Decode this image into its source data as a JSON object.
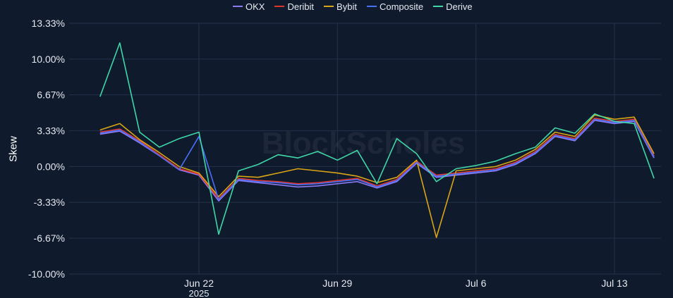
{
  "chart_data": {
    "type": "line",
    "title": "",
    "ylabel": "Skew",
    "xlabel": "",
    "y_ticks": [
      "13.33%",
      "10.00%",
      "6.67%",
      "3.33%",
      "0.00%",
      "-3.33%",
      "-6.67%",
      "-10.00%"
    ],
    "y_tick_values": [
      13.33,
      10.0,
      6.67,
      3.33,
      0.0,
      -3.33,
      -6.67,
      -10.0
    ],
    "ylim": [
      -10.0,
      13.33
    ],
    "x_ticks": [
      "Jun 22",
      "Jun 29",
      "Jul 6",
      "Jul 13"
    ],
    "x_tick_sublabel": "2025",
    "x_range": [
      "2025-06-17",
      "2025-07-15"
    ],
    "watermark": "BlockScholes",
    "legend_position": "top-center",
    "grid": true,
    "colors": {
      "background": "#0f1a2d",
      "grid": "#24324a",
      "text": "#e6e9ef"
    },
    "series": [
      {
        "name": "OKX",
        "color": "#8b7cf6",
        "x": [
          "2025-06-17",
          "2025-06-18",
          "2025-06-19",
          "2025-06-20",
          "2025-06-21",
          "2025-06-22",
          "2025-06-23",
          "2025-06-24",
          "2025-06-25",
          "2025-06-26",
          "2025-06-27",
          "2025-06-28",
          "2025-06-29",
          "2025-06-30",
          "2025-07-01",
          "2025-07-02",
          "2025-07-03",
          "2025-07-04",
          "2025-07-05",
          "2025-07-06",
          "2025-07-07",
          "2025-07-08",
          "2025-07-09",
          "2025-07-10",
          "2025-07-11",
          "2025-07-12",
          "2025-07-13",
          "2025-07-14",
          "2025-07-15"
        ],
        "values": [
          3.0,
          3.3,
          2.2,
          1.0,
          -0.3,
          -0.8,
          -3.2,
          -1.3,
          -1.5,
          -1.7,
          -1.9,
          -1.8,
          -1.6,
          -1.4,
          -2.0,
          -1.4,
          0.3,
          -1.0,
          -0.8,
          -0.6,
          -0.4,
          0.2,
          1.2,
          2.8,
          2.4,
          4.3,
          4.0,
          4.2,
          0.8
        ]
      },
      {
        "name": "Deribit",
        "color": "#e0352b",
        "x": [
          "2025-06-17",
          "2025-06-18",
          "2025-06-19",
          "2025-06-20",
          "2025-06-21",
          "2025-06-22",
          "2025-06-23",
          "2025-06-24",
          "2025-06-25",
          "2025-06-26",
          "2025-06-27",
          "2025-06-28",
          "2025-06-29",
          "2025-06-30",
          "2025-07-01",
          "2025-07-02",
          "2025-07-03",
          "2025-07-04",
          "2025-07-05",
          "2025-07-06",
          "2025-07-07",
          "2025-07-08",
          "2025-07-09",
          "2025-07-10",
          "2025-07-11",
          "2025-07-12",
          "2025-07-13",
          "2025-07-14",
          "2025-07-15"
        ],
        "values": [
          3.2,
          3.5,
          2.4,
          1.1,
          -0.2,
          -0.7,
          -3.0,
          -1.1,
          -1.3,
          -1.4,
          -1.6,
          -1.5,
          -1.3,
          -1.1,
          -1.8,
          -1.2,
          0.5,
          -0.8,
          -0.6,
          -0.4,
          -0.2,
          0.4,
          1.4,
          3.0,
          2.6,
          4.5,
          4.2,
          4.4,
          1.0
        ]
      },
      {
        "name": "Bybit",
        "color": "#d9a514",
        "x": [
          "2025-06-17",
          "2025-06-18",
          "2025-06-19",
          "2025-06-20",
          "2025-06-21",
          "2025-06-22",
          "2025-06-23",
          "2025-06-24",
          "2025-06-25",
          "2025-06-26",
          "2025-06-27",
          "2025-06-28",
          "2025-06-29",
          "2025-06-30",
          "2025-07-01",
          "2025-07-02",
          "2025-07-03",
          "2025-07-04",
          "2025-07-05",
          "2025-07-06",
          "2025-07-07",
          "2025-07-08",
          "2025-07-09",
          "2025-07-10",
          "2025-07-11",
          "2025-07-12",
          "2025-07-13",
          "2025-07-14",
          "2025-07-15"
        ],
        "values": [
          3.4,
          4.0,
          2.5,
          1.3,
          0.0,
          -0.6,
          -2.8,
          -0.9,
          -1.0,
          -0.6,
          -0.2,
          -0.4,
          -0.6,
          -0.9,
          -1.5,
          -1.0,
          0.6,
          -6.6,
          -0.4,
          -0.2,
          0.0,
          0.6,
          1.6,
          3.2,
          2.8,
          4.8,
          4.4,
          4.6,
          1.2
        ]
      },
      {
        "name": "Composite",
        "color": "#4a6ef5",
        "x": [
          "2025-06-17",
          "2025-06-18",
          "2025-06-19",
          "2025-06-20",
          "2025-06-21",
          "2025-06-22",
          "2025-06-23",
          "2025-06-24",
          "2025-06-25",
          "2025-06-26",
          "2025-06-27",
          "2025-06-28",
          "2025-06-29",
          "2025-06-30",
          "2025-07-01",
          "2025-07-02",
          "2025-07-03",
          "2025-07-04",
          "2025-07-05",
          "2025-07-06",
          "2025-07-07",
          "2025-07-08",
          "2025-07-09",
          "2025-07-10",
          "2025-07-11",
          "2025-07-12",
          "2025-07-13",
          "2025-07-14",
          "2025-07-15"
        ],
        "values": [
          3.1,
          3.4,
          2.3,
          1.0,
          -0.3,
          2.8,
          -3.1,
          -1.2,
          -1.4,
          -1.5,
          -1.7,
          -1.6,
          -1.4,
          -1.2,
          -1.9,
          -1.3,
          0.4,
          -0.9,
          -0.7,
          -0.5,
          -0.3,
          0.3,
          1.3,
          2.9,
          2.5,
          4.4,
          4.1,
          4.3,
          0.9
        ]
      },
      {
        "name": "Derive",
        "color": "#3fd6a8",
        "x": [
          "2025-06-17",
          "2025-06-18",
          "2025-06-19",
          "2025-06-20",
          "2025-06-21",
          "2025-06-22",
          "2025-06-23",
          "2025-06-24",
          "2025-06-25",
          "2025-06-26",
          "2025-06-27",
          "2025-06-28",
          "2025-06-29",
          "2025-06-30",
          "2025-07-01",
          "2025-07-02",
          "2025-07-03",
          "2025-07-04",
          "2025-07-05",
          "2025-07-06",
          "2025-07-07",
          "2025-07-08",
          "2025-07-09",
          "2025-07-10",
          "2025-07-11",
          "2025-07-12",
          "2025-07-13",
          "2025-07-14",
          "2025-07-15"
        ],
        "values": [
          6.5,
          11.5,
          3.2,
          1.8,
          2.6,
          3.2,
          -6.3,
          -0.4,
          0.2,
          1.1,
          0.8,
          1.4,
          0.6,
          1.5,
          -1.6,
          2.6,
          1.2,
          -1.4,
          -0.2,
          0.1,
          0.5,
          1.2,
          1.8,
          3.6,
          3.1,
          4.9,
          4.2,
          4.0,
          -1.1
        ]
      }
    ]
  }
}
